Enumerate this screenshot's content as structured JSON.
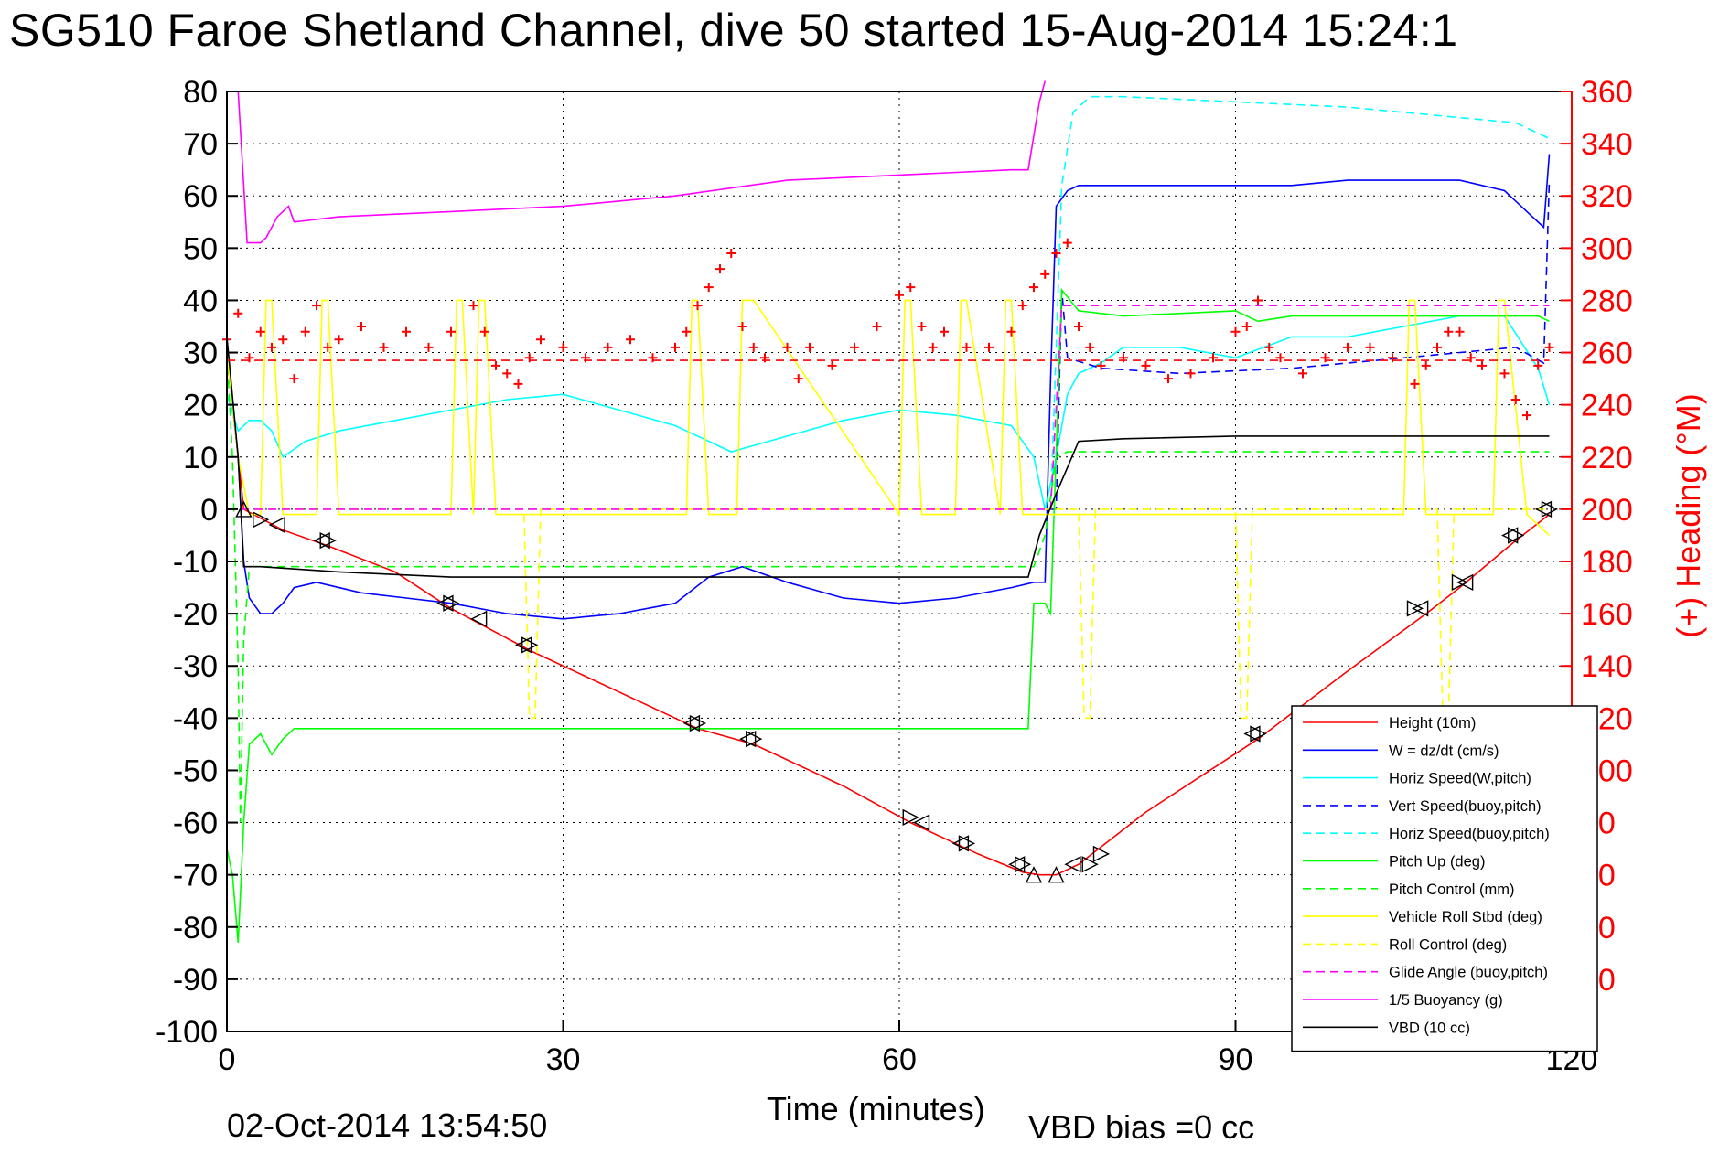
{
  "title": "SG510 Faroe Shetland Channel, dive 50 started 15-Aug-2014 15:24:1",
  "footer": {
    "timestamp": "02-Oct-2014 13:54:50",
    "vbd_bias": "VBD bias =0 cc"
  },
  "chart_data": {
    "type": "line",
    "xlabel": "Time (minutes)",
    "ylabel_left": "",
    "ylabel_right": "(+) Heading (°M)",
    "xlim": [
      0,
      120
    ],
    "ylim_left": [
      -100,
      80
    ],
    "ylim_right": [
      0,
      360
    ],
    "x_ticks": [
      0,
      30,
      60,
      90,
      120
    ],
    "y_ticks_left": [
      80,
      70,
      60,
      50,
      40,
      30,
      20,
      10,
      0,
      -10,
      -20,
      -30,
      -40,
      -50,
      -60,
      -70,
      -80,
      -90,
      -100
    ],
    "y_ticks_right": [
      360,
      340,
      320,
      300,
      280,
      260,
      240,
      220,
      200,
      180,
      160,
      140,
      120,
      100,
      80,
      60,
      40,
      20,
      0
    ],
    "grid": true,
    "legend_position": "lower-right",
    "colors": {
      "height": "#ff0000",
      "w": "#0000ff",
      "horiz_speed_w": "#00ffff",
      "vert_speed_buoy": "#0000ff",
      "horiz_speed_buoy": "#00ffff",
      "pitch_up": "#00ff00",
      "pitch_control": "#00ff00",
      "roll": "#ffff00",
      "roll_control": "#ffff00",
      "glide_angle": "#ff00ff",
      "buoyancy": "#ff00ff",
      "vbd": "#000000",
      "heading": "#ff0000",
      "right_axis": "#ff0000"
    },
    "series": [
      {
        "name": "Height (10m)",
        "axis": "left",
        "style": "solid",
        "color_key": "height",
        "x": [
          0,
          1.5,
          5,
          9,
          15,
          20,
          27,
          35,
          42,
          47,
          55,
          61,
          67,
          71,
          72.5,
          74,
          76,
          82,
          92,
          100,
          107,
          110,
          115,
          118
        ],
        "y": [
          30,
          0,
          -4,
          -7,
          -12,
          -19,
          -27,
          -35,
          -42,
          -45,
          -53,
          -60,
          -66,
          -69.5,
          -70,
          -70,
          -68,
          -58,
          -44,
          -31,
          -20,
          -15,
          -6,
          -1
        ]
      },
      {
        "name": "W = dz/dt (cm/s)",
        "axis": "left",
        "style": "solid",
        "color_key": "w",
        "x": [
          0,
          1,
          1.5,
          2,
          3,
          4,
          5,
          6,
          8,
          12,
          16,
          20,
          25,
          30,
          35,
          40,
          43,
          46,
          50,
          55,
          60,
          65,
          70,
          72,
          73,
          73.5,
          74,
          75,
          76,
          78,
          80,
          85,
          90,
          95,
          100,
          105,
          110,
          114,
          116,
          117.5,
          118
        ],
        "y": [
          30,
          10,
          -10,
          -17,
          -20,
          -20,
          -18,
          -15,
          -14,
          -16,
          -17,
          -18,
          -20,
          -21,
          -20,
          -18,
          -13,
          -11,
          -14,
          -17,
          -18,
          -17,
          -15,
          -14,
          -14,
          25,
          58,
          61,
          62,
          62,
          62,
          62,
          62,
          62,
          63,
          63,
          63,
          61,
          57,
          54,
          68
        ]
      },
      {
        "name": "Horiz Speed(W,pitch)",
        "axis": "left",
        "style": "solid",
        "color_key": "horiz_speed_w",
        "x": [
          0,
          1,
          1.5,
          2,
          3,
          4,
          5,
          7,
          10,
          15,
          20,
          25,
          30,
          35,
          40,
          43,
          45,
          50,
          55,
          60,
          65,
          70,
          72,
          73,
          74,
          75,
          76,
          78,
          80,
          85,
          90,
          95,
          100,
          105,
          110,
          114,
          117,
          118
        ],
        "y": [
          22,
          15,
          16,
          17,
          17,
          15,
          10,
          13,
          15,
          17,
          19,
          21,
          22,
          19,
          16,
          13,
          11,
          14,
          17,
          19,
          18,
          16,
          10,
          0,
          10,
          22,
          26,
          28,
          31,
          31,
          29,
          33,
          33,
          35,
          37,
          37,
          27,
          20
        ]
      },
      {
        "name": "Vert Speed(buoy,pitch)",
        "axis": "left",
        "style": "dashed",
        "color_key": "vert_speed_buoy",
        "x": [
          73.5,
          74,
          74.5,
          75,
          78,
          85,
          95,
          105,
          115,
          117.5,
          118
        ],
        "y": [
          0,
          0,
          42,
          29,
          27,
          26,
          27,
          29,
          31,
          28,
          63
        ]
      },
      {
        "name": "Horiz Speed(buoy,pitch)",
        "axis": "left",
        "style": "dashed",
        "color_key": "horiz_speed_buoy",
        "x": [
          72,
          73.5,
          74.5,
          75.5,
          77,
          80,
          90,
          100,
          110,
          115,
          117,
          118
        ],
        "y": [
          0,
          0,
          62,
          76,
          79,
          79,
          78,
          77,
          75,
          74,
          72,
          71
        ]
      },
      {
        "name": "Pitch Up (deg)",
        "axis": "left",
        "style": "solid",
        "color_key": "pitch_up",
        "x": [
          0,
          0.5,
          1,
          1.5,
          2,
          3,
          4,
          5,
          6,
          10,
          20,
          30,
          40,
          50,
          60,
          70,
          71,
          71.5,
          72,
          73,
          73.5,
          74.5,
          76,
          80,
          90,
          92,
          95,
          100,
          110,
          115,
          117,
          118
        ],
        "y": [
          -65,
          -70,
          -83,
          -60,
          -45,
          -43,
          -47,
          -44,
          -42,
          -42,
          -42,
          -42,
          -42,
          -42,
          -42,
          -42,
          -42,
          -42,
          -18,
          -18,
          -20,
          42,
          38,
          37,
          38,
          36,
          37,
          37,
          37,
          37,
          37,
          36
        ]
      },
      {
        "name": "Pitch Control (mm)",
        "axis": "left",
        "style": "dashed",
        "color_key": "pitch_control",
        "x": [
          0,
          0.5,
          1,
          1.2,
          1.5,
          2,
          3,
          10,
          30,
          50,
          70,
          72,
          73,
          74,
          75,
          90,
          110,
          118
        ],
        "y": [
          30,
          10,
          -30,
          -60,
          -25,
          -11,
          -11,
          -11,
          -11,
          -11,
          -11,
          -11,
          -5,
          10,
          11,
          11,
          11,
          11
        ]
      },
      {
        "name": "Vehicle Roll Stbd (deg)",
        "axis": "left",
        "style": "solid",
        "color_key": "roll",
        "x": [
          0,
          1,
          2,
          3,
          3.5,
          4,
          5,
          8,
          8.5,
          9,
          10,
          20,
          20.5,
          21,
          22,
          22.5,
          23,
          24,
          41,
          41.5,
          42,
          43,
          45.5,
          46,
          47,
          60,
          60.5,
          61,
          62,
          65,
          65.5,
          66,
          69,
          69.5,
          70,
          71,
          72,
          74,
          76,
          80,
          90,
          100,
          105,
          105.5,
          106,
          107,
          113,
          113.5,
          114,
          116,
          118
        ],
        "y": [
          30,
          10,
          -1,
          -1,
          40,
          40,
          -1,
          -1,
          40,
          40,
          -1,
          -1,
          40,
          40,
          -1,
          40,
          40,
          -1,
          -1,
          40,
          40,
          -1,
          -1,
          40,
          40,
          -1,
          40,
          40,
          -1,
          -1,
          40,
          40,
          -1,
          40,
          40,
          -1,
          -1,
          -1,
          -1,
          -1,
          -1,
          -1,
          -1,
          40,
          40,
          -1,
          -1,
          40,
          40,
          -1,
          -5
        ]
      },
      {
        "name": "Roll Control (deg)",
        "axis": "left",
        "style": "dashed",
        "color_key": "roll_control",
        "x": [
          0,
          10,
          26.5,
          27,
          27.5,
          28,
          40,
          60,
          76,
          76.5,
          77,
          77.5,
          90,
          90.5,
          91,
          91.5,
          108,
          108.5,
          109,
          109.5,
          118
        ],
        "y": [
          0,
          0,
          0,
          -40,
          -40,
          0,
          0,
          0,
          0,
          -40,
          -40,
          0,
          0,
          -40,
          -40,
          0,
          0,
          -40,
          -40,
          0,
          0
        ]
      },
      {
        "name": "Glide Angle (buoy,pitch)",
        "axis": "left",
        "style": "dashed",
        "color_key": "glide_angle",
        "x": [
          0,
          72,
          73.5,
          74.5,
          76,
          80,
          90,
          100,
          110,
          118
        ],
        "y": [
          0,
          0,
          0,
          39,
          39,
          39,
          39,
          39,
          39,
          39
        ]
      },
      {
        "name": "1/5 Buoyancy (g)",
        "axis": "left",
        "style": "solid",
        "color_key": "buoyancy",
        "x": [
          1,
          1.8,
          2.5,
          3,
          3.5,
          4.5,
          5.5,
          6,
          10,
          20,
          30,
          40,
          50,
          60,
          70,
          71.5,
          72.5,
          73
        ],
        "y": [
          80,
          51,
          51,
          51,
          52,
          56,
          58,
          55,
          56,
          57,
          58,
          60,
          63,
          64,
          65,
          65,
          78,
          82
        ]
      },
      {
        "name": "VBD (10 cc)",
        "axis": "left",
        "style": "solid",
        "color_key": "vbd",
        "x": [
          0,
          1,
          1.5,
          2,
          3,
          10,
          20,
          30,
          40,
          50,
          60,
          70,
          71.5,
          72.5,
          74,
          75,
          76,
          80,
          90,
          100,
          110,
          118
        ],
        "y": [
          33,
          10,
          -11,
          -11,
          -11,
          -12,
          -13,
          -13,
          -13,
          -13,
          -13,
          -13,
          -13,
          -5,
          3,
          8,
          13,
          13.5,
          14,
          14,
          14,
          14
        ]
      },
      {
        "name": "(+) Heading",
        "axis": "right",
        "style": "markers",
        "color_key": "heading",
        "x": [
          0,
          1,
          2,
          3,
          4,
          5,
          6,
          7,
          8,
          9,
          10,
          12,
          14,
          16,
          18,
          20,
          22,
          23,
          24,
          25,
          26,
          27,
          28,
          30,
          32,
          34,
          36,
          38,
          40,
          41,
          42,
          43,
          44,
          45,
          46,
          47,
          48,
          50,
          51,
          52,
          54,
          56,
          58,
          60,
          61,
          62,
          63,
          64,
          66,
          68,
          70,
          71,
          72,
          73,
          74,
          75,
          76,
          77,
          78,
          80,
          82,
          84,
          86,
          88,
          90,
          91,
          92,
          93,
          94,
          96,
          98,
          100,
          102,
          104,
          106,
          107,
          108,
          109,
          110,
          111,
          112,
          114,
          115,
          116,
          117,
          118
        ],
        "y": [
          265,
          275,
          258,
          268,
          262,
          265,
          250,
          268,
          278,
          262,
          265,
          270,
          262,
          268,
          262,
          268,
          278,
          268,
          255,
          252,
          248,
          258,
          265,
          262,
          258,
          262,
          265,
          258,
          262,
          268,
          278,
          285,
          292,
          298,
          270,
          262,
          258,
          262,
          250,
          262,
          255,
          262,
          270,
          282,
          285,
          270,
          262,
          268,
          262,
          262,
          268,
          278,
          285,
          290,
          298,
          302,
          270,
          262,
          255,
          258,
          255,
          250,
          252,
          258,
          268,
          270,
          280,
          262,
          258,
          252,
          258,
          262,
          262,
          258,
          248,
          255,
          262,
          268,
          268,
          258,
          255,
          252,
          242,
          236,
          255,
          262
        ]
      },
      {
        "name": "Heading target",
        "axis": "right",
        "style": "dashed",
        "color_key": "heading",
        "x": [
          0,
          118
        ],
        "y": [
          257,
          257
        ]
      }
    ],
    "markers": {
      "up_triangles": {
        "x": [
          1.5,
          72,
          74
        ],
        "y": [
          0,
          -70,
          -70
        ]
      },
      "down_triangles": {
        "x": [],
        "y": []
      },
      "right_triangles": {
        "x": [
          3,
          9,
          20,
          27,
          42,
          47,
          61,
          66,
          71,
          77,
          78,
          92,
          106,
          110,
          115,
          118
        ],
        "y": [
          -2,
          -6,
          -18,
          -26,
          -41,
          -44,
          -59,
          -64,
          -68,
          -68,
          -66,
          -43,
          -19,
          -14,
          -5,
          0
        ]
      },
      "left_triangles": {
        "x": [
          4.5,
          8.5,
          19.5,
          22.5,
          26.5,
          41.5,
          46.5,
          62,
          65.5,
          70.5,
          75.5,
          91.5,
          106.5,
          110.5,
          114.5,
          117.5
        ],
        "y": [
          -3,
          -6,
          -18,
          -21,
          -26,
          -41,
          -44,
          -60,
          -64,
          -68,
          -68,
          -43,
          -19,
          -14,
          -5,
          0
        ]
      }
    }
  }
}
